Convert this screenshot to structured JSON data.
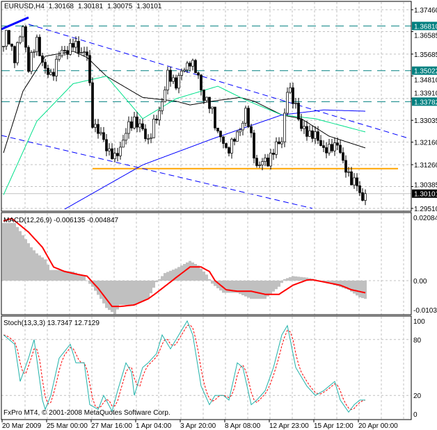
{
  "header": {
    "symbol": "EURUSD,H4",
    "open": "1.30168",
    "high": "1.30181",
    "low": "1.30075",
    "close": "1.30101"
  },
  "macd_header": "MACD(12,26,9) -0.006135 -0.004847",
  "stoch_header": "Stoch(13,3,3) 13.7347 12.7129",
  "copyright": "FxPro MT4, © 2001-2008 MetaQuotes Software Corp.",
  "colors": {
    "bull_body": "#ffffff",
    "bear_body": "#000000",
    "hline": "#008080",
    "support": "#ffa500",
    "trend": "#0000ff",
    "ma_fast": "#000000",
    "ma_mid": "#00e08a",
    "ma_slow": "#0000ff",
    "macd_hist": "#c0c0c0",
    "macd_signal": "#ff0000",
    "stoch_main": "#20b2aa",
    "stoch_signal": "#ff0000"
  },
  "chart_data": [
    {
      "type": "candlestick",
      "title": "EURUSD,H4",
      "bars": 131,
      "ylim": [
        1.2951,
        1.3746
      ],
      "price_ticks": [
        "1.37460",
        "1.36585",
        "1.35685",
        "1.34810",
        "1.33910",
        "1.33035",
        "1.32160",
        "1.31260",
        "1.30385",
        "1.29510"
      ],
      "close_waypoints": [
        [
          0,
          1.36
        ],
        [
          1,
          1.3646
        ],
        [
          4,
          1.356
        ],
        [
          7,
          1.3674
        ],
        [
          9,
          1.352
        ],
        [
          12,
          1.362
        ],
        [
          15,
          1.35
        ],
        [
          17,
          1.348
        ],
        [
          20,
          1.3565
        ],
        [
          25,
          1.3605
        ],
        [
          30,
          1.3565
        ],
        [
          32,
          1.33
        ],
        [
          37,
          1.32
        ],
        [
          40,
          1.3145
        ],
        [
          44,
          1.3255
        ],
        [
          47,
          1.331
        ],
        [
          52,
          1.3225
        ],
        [
          56,
          1.334
        ],
        [
          59,
          1.348
        ],
        [
          62,
          1.3455
        ],
        [
          67,
          1.3545
        ],
        [
          70,
          1.3475
        ],
        [
          72,
          1.3395
        ],
        [
          75,
          1.334
        ],
        [
          77,
          1.3255
        ],
        [
          80,
          1.3185
        ],
        [
          84,
          1.324
        ],
        [
          87,
          1.334
        ],
        [
          91,
          1.312
        ],
        [
          95,
          1.3145
        ],
        [
          100,
          1.323
        ],
        [
          102,
          1.3425
        ],
        [
          105,
          1.337
        ],
        [
          107,
          1.3265
        ],
        [
          111,
          1.325
        ],
        [
          115,
          1.3195
        ],
        [
          117,
          1.318
        ],
        [
          120,
          1.322
        ],
        [
          122,
          1.3125
        ],
        [
          125,
          1.307
        ],
        [
          127,
          1.304
        ],
        [
          129,
          1.2985
        ],
        [
          130,
          1.301
        ]
      ],
      "moving_averages": [
        {
          "name": "MA fast",
          "color_key": "ma_fast",
          "points": [
            [
              0,
              1.3173
            ],
            [
              7,
              1.342
            ],
            [
              15,
              1.356
            ],
            [
              25,
              1.358
            ],
            [
              30,
              1.3555
            ],
            [
              37,
              1.348
            ],
            [
              50,
              1.3395
            ],
            [
              62,
              1.338
            ],
            [
              67,
              1.3365
            ],
            [
              75,
              1.338
            ],
            [
              85,
              1.3395
            ],
            [
              90,
              1.338
            ],
            [
              100,
              1.3325
            ],
            [
              107,
              1.331
            ],
            [
              117,
              1.324
            ],
            [
              130,
              1.3193
            ]
          ]
        },
        {
          "name": "MA mid",
          "color_key": "ma_mid",
          "points": [
            [
              0,
              1.3005
            ],
            [
              12,
              1.33
            ],
            [
              25,
              1.345
            ],
            [
              37,
              1.348
            ],
            [
              50,
              1.331
            ],
            [
              62,
              1.339
            ],
            [
              77,
              1.344
            ],
            [
              87,
              1.3385
            ],
            [
              100,
              1.3325
            ],
            [
              112,
              1.331
            ],
            [
              130,
              1.3257
            ]
          ]
        },
        {
          "name": "MA slow",
          "color_key": "ma_slow",
          "points": [
            [
              22,
              1.2948
            ],
            [
              50,
              1.3125
            ],
            [
              75,
              1.3229
            ],
            [
              100,
              1.3325
            ],
            [
              115,
              1.3345
            ],
            [
              130,
              1.334
            ]
          ]
        }
      ],
      "horizontal_lines": [
        {
          "price": 1.3681,
          "label": "1.36810"
        },
        {
          "price": 1.35022,
          "label": "1.35022"
        },
        {
          "price": 1.33782,
          "label": "1.33782"
        }
      ],
      "support_line": {
        "price": 1.311,
        "from_bar": 32,
        "to_bar": 142
      },
      "trend_lines": [
        {
          "from": [
            9,
            1.3688
          ],
          "to": [
            146,
            1.323
          ],
          "style": "dashed"
        },
        {
          "from": [
            -1,
            1.3243
          ],
          "to": [
            111,
            1.2951
          ],
          "style": "dashed"
        },
        {
          "from": [
            -1,
            1.3668
          ],
          "to": [
            9,
            1.3715
          ],
          "style": "solid"
        }
      ],
      "current_price": "1.30101",
      "current_value": 1.30101
    },
    {
      "type": "macd",
      "title": "MACD(12,26,9)",
      "ylim": [
        -0.01037,
        0.02084
      ],
      "ticks": [
        "0.02084",
        "0.00",
        "-0.01037"
      ],
      "histogram_waypoints": [
        [
          0,
          0.019
        ],
        [
          4,
          0.019
        ],
        [
          7,
          0.015
        ],
        [
          10,
          0.011
        ],
        [
          12,
          0.009
        ],
        [
          15,
          0.007
        ],
        [
          17,
          0.0035
        ],
        [
          20,
          0.0035
        ],
        [
          25,
          0.003
        ],
        [
          29,
          0.0015
        ],
        [
          30,
          -0.0001
        ],
        [
          32,
          -0.002
        ],
        [
          35,
          -0.006
        ],
        [
          37,
          -0.009
        ],
        [
          40,
          -0.011
        ],
        [
          42,
          -0.008
        ],
        [
          47,
          -0.008
        ],
        [
          52,
          -0.006
        ],
        [
          55,
          -0.0005
        ],
        [
          58,
          0.0025
        ],
        [
          62,
          0.004
        ],
        [
          67,
          0.0065
        ],
        [
          70,
          0.005
        ],
        [
          73,
          0.002
        ],
        [
          75,
          -0.001
        ],
        [
          79,
          -0.004
        ],
        [
          84,
          -0.004
        ],
        [
          89,
          -0.006
        ],
        [
          94,
          -0.006
        ],
        [
          99,
          -0.002
        ],
        [
          101,
          0.0005
        ],
        [
          104,
          0.0015
        ],
        [
          109,
          0.001
        ],
        [
          114,
          0.0
        ],
        [
          119,
          -0.0015
        ],
        [
          124,
          -0.003
        ],
        [
          128,
          -0.0055
        ],
        [
          130,
          -0.006
        ]
      ],
      "signal_waypoints": [
        [
          0,
          0.0197
        ],
        [
          3,
          0.0205
        ],
        [
          5,
          0.019
        ],
        [
          9,
          0.016
        ],
        [
          14,
          0.011
        ],
        [
          18,
          0.0045
        ],
        [
          22,
          0.003
        ],
        [
          27,
          0.002
        ],
        [
          30,
          0.0015
        ],
        [
          34,
          -0.0025
        ],
        [
          39,
          -0.0085
        ],
        [
          42,
          -0.0085
        ],
        [
          47,
          -0.008
        ],
        [
          52,
          -0.006
        ],
        [
          55,
          -0.004
        ],
        [
          62,
          0.001
        ],
        [
          67,
          0.0045
        ],
        [
          71,
          0.0045
        ],
        [
          74,
          0.003
        ],
        [
          76,
          0.0
        ],
        [
          80,
          -0.003
        ],
        [
          84,
          -0.0035
        ],
        [
          89,
          -0.0035
        ],
        [
          94,
          -0.0045
        ],
        [
          99,
          -0.0045
        ],
        [
          104,
          -0.0015
        ],
        [
          109,
          0.0002
        ],
        [
          111,
          0.0003
        ],
        [
          116,
          -0.0006
        ],
        [
          121,
          -0.0015
        ],
        [
          125,
          -0.003
        ],
        [
          130,
          -0.004
        ]
      ]
    },
    {
      "type": "stochastic",
      "title": "Stoch(13,3,3)",
      "ylim": [
        0,
        100
      ],
      "ticks": [
        "100",
        "80",
        "20",
        "0"
      ],
      "main_waypoints": [
        [
          0,
          85
        ],
        [
          4,
          75
        ],
        [
          6,
          35
        ],
        [
          9,
          60
        ],
        [
          11,
          80
        ],
        [
          14,
          15
        ],
        [
          15,
          5
        ],
        [
          17,
          20
        ],
        [
          20,
          60
        ],
        [
          24,
          75
        ],
        [
          26,
          55
        ],
        [
          29,
          55
        ],
        [
          31,
          10
        ],
        [
          34,
          5
        ],
        [
          36,
          20
        ],
        [
          39,
          3
        ],
        [
          41,
          25
        ],
        [
          44,
          55
        ],
        [
          46,
          45
        ],
        [
          47,
          20
        ],
        [
          50,
          50
        ],
        [
          52,
          55
        ],
        [
          55,
          65
        ],
        [
          57,
          85
        ],
        [
          60,
          70
        ],
        [
          62,
          80
        ],
        [
          66,
          100
        ],
        [
          68,
          85
        ],
        [
          71,
          30
        ],
        [
          74,
          10
        ],
        [
          76,
          20
        ],
        [
          79,
          20
        ],
        [
          81,
          15
        ],
        [
          84,
          55
        ],
        [
          86,
          50
        ],
        [
          89,
          10
        ],
        [
          91,
          15
        ],
        [
          94,
          25
        ],
        [
          97,
          50
        ],
        [
          100,
          85
        ],
        [
          102,
          95
        ],
        [
          105,
          50
        ],
        [
          109,
          30
        ],
        [
          112,
          20
        ],
        [
          115,
          25
        ],
        [
          119,
          35
        ],
        [
          121,
          15
        ],
        [
          124,
          2
        ],
        [
          126,
          10
        ],
        [
          128,
          15
        ],
        [
          130,
          15
        ]
      ]
    }
  ],
  "time_axis": [
    "20 Mar 2009",
    "25 Mar 00:00",
    "27 Mar 16:00",
    "1 Apr 04:00",
    "3 Apr 20:00",
    "8 Apr 08:00",
    "12 Apr 23:00",
    "15 Apr 12:00",
    "20 Apr 00:00"
  ]
}
